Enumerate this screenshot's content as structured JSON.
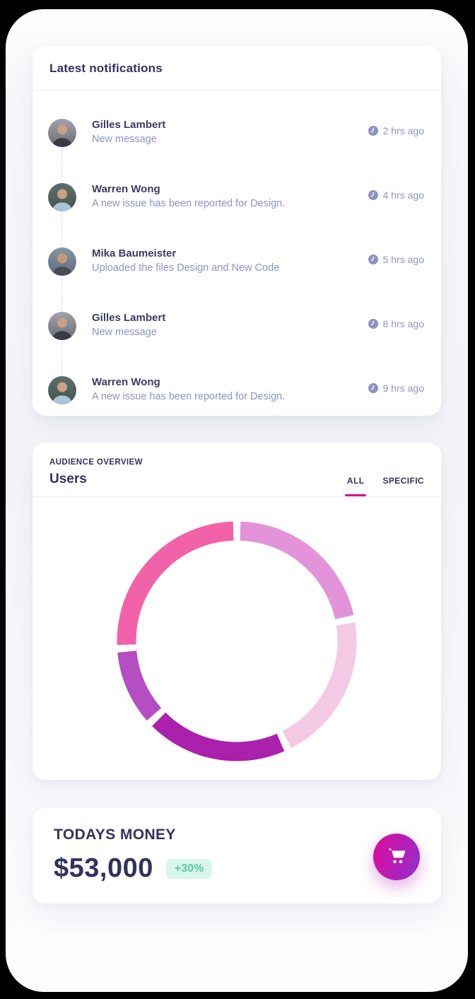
{
  "notifications_card": {
    "title": "Latest notifications",
    "items": [
      {
        "name": "Gilles Lambert",
        "message": "New message",
        "time": "2 hrs ago",
        "avatar": "gilles"
      },
      {
        "name": "Warren Wong",
        "message": "A new issue has been reported for Design.",
        "time": "4 hrs ago",
        "avatar": "warren"
      },
      {
        "name": "Mika Baumeister",
        "message": "Uploaded the files Design and New Code",
        "time": "5 hrs ago",
        "avatar": "mika"
      },
      {
        "name": "Gilles Lambert",
        "message": "New message",
        "time": "8 hrs ago",
        "avatar": "gilles"
      },
      {
        "name": "Warren Wong",
        "message": "A new issue has been reported for Design.",
        "time": "9 hrs ago",
        "avatar": "warren"
      }
    ]
  },
  "audience_card": {
    "eyebrow": "AUDIENCE OVERVIEW",
    "title": "Users",
    "tabs": [
      {
        "label": "ALL",
        "active": true
      },
      {
        "label": "SPECIFIC",
        "active": false
      }
    ],
    "active_tab_underline_color": "#e10b86"
  },
  "chart_data": {
    "type": "pie",
    "variant": "donut",
    "title": "Users",
    "legend": "none",
    "start": "top",
    "direction": "clockwise",
    "segments": [
      {
        "label": "segment-1",
        "value": 22,
        "color": "#e293da"
      },
      {
        "label": "segment-2",
        "value": 21,
        "color": "#f4c9e4"
      },
      {
        "label": "segment-3",
        "value": 20,
        "color": "#ab20ad"
      },
      {
        "label": "segment-4",
        "value": 11,
        "color": "#b44ec2"
      },
      {
        "label": "segment-5",
        "value": 26,
        "color": "#f262a9"
      }
    ]
  },
  "money_card": {
    "title": "TODAYS MONEY",
    "value": "$53,000",
    "delta": "+30%",
    "delta_color": "#56cba0",
    "delta_bg": "#d9f6ea",
    "button_gradient": [
      "#dc0b9e",
      "#9330cb"
    ]
  },
  "theme": {
    "heading_color": "#32325d",
    "muted_text_color": "#8b92c6",
    "card_bg": "#ffffff",
    "page_bg": "#f3f3f8"
  }
}
